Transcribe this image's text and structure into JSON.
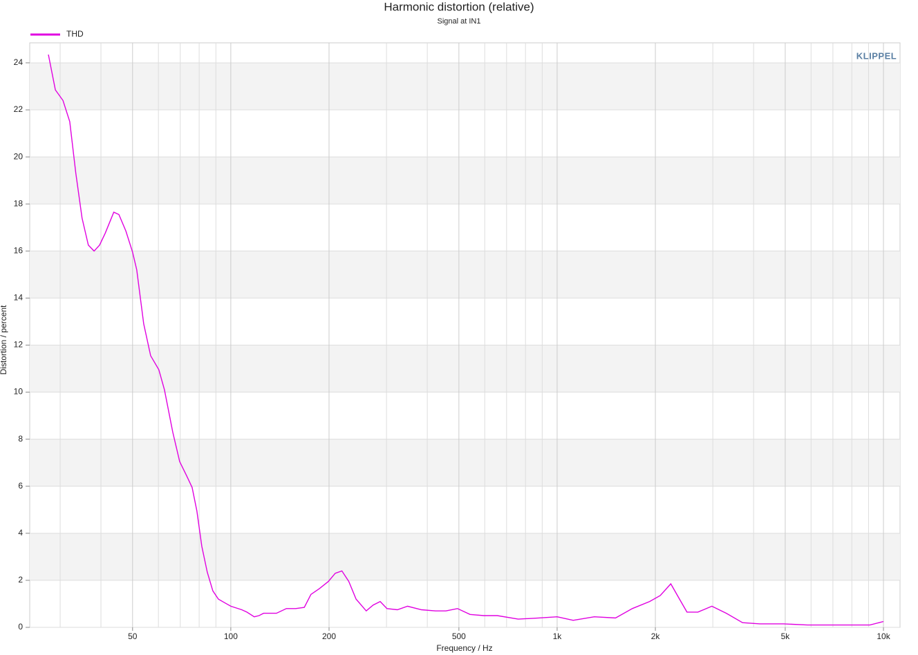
{
  "chart_data": {
    "type": "line",
    "title": "Harmonic distortion (relative)",
    "subtitle": "Signal at IN1",
    "x_label": "Frequency / Hz",
    "y_label": "Distortion / percent",
    "logo": "KLIPPEL",
    "log_x": true,
    "grid": true,
    "legend": "top-left",
    "xlim": [
      24.2,
      11240
    ],
    "ylim": [
      0,
      24.85
    ],
    "xticks": [
      50,
      100,
      200,
      500,
      {
        "value": 1000,
        "label": "1k"
      },
      {
        "value": 2000,
        "label": "2k"
      },
      {
        "value": 5000,
        "label": "5k"
      },
      {
        "value": 10000,
        "label": "10k"
      }
    ],
    "xminorticks": [
      30,
      40,
      60,
      70,
      80,
      90,
      300,
      400,
      600,
      700,
      800,
      900,
      3000,
      4000,
      6000,
      7000,
      8000,
      9000
    ],
    "yticks": [
      0,
      2,
      4,
      6,
      8,
      10,
      12,
      14,
      16,
      18,
      20,
      22,
      24
    ],
    "x": [
      27.6,
      29.0,
      30.6,
      32.1,
      33.5,
      35.0,
      36.6,
      38.1,
      39.6,
      41.2,
      43.8,
      45.4,
      47.7,
      50.0,
      51.5,
      54.1,
      56.8,
      60.2,
      62.6,
      66.4,
      69.7,
      73.2,
      76.1,
      78.7,
      81.5,
      84.7,
      88.1,
      91.6,
      95.7,
      100,
      108,
      112,
      118,
      122,
      126,
      138,
      148,
      158,
      168,
      176,
      187,
      199,
      209,
      219,
      230,
      242,
      260,
      273,
      287,
      301,
      324,
      348,
      384,
      424,
      456,
      495,
      541,
      596,
      656,
      760,
      878,
      1000,
      1120,
      1300,
      1510,
      1700,
      1920,
      2070,
      2230,
      2360,
      2500,
      2700,
      2980,
      3300,
      3700,
      4180,
      4940,
      5850,
      6810,
      8270,
      9090,
      10000
    ],
    "series": [
      {
        "name": "THD",
        "color": "#e000e0",
        "values": [
          24.35,
          22.85,
          22.4,
          21.5,
          19.3,
          17.4,
          16.25,
          16.0,
          16.25,
          16.75,
          17.65,
          17.55,
          16.85,
          15.95,
          15.2,
          12.9,
          11.55,
          10.95,
          10.1,
          8.3,
          7.05,
          6.45,
          5.95,
          4.95,
          3.45,
          2.35,
          1.55,
          1.2,
          1.05,
          0.9,
          0.75,
          0.65,
          0.45,
          0.5,
          0.6,
          0.6,
          0.8,
          0.8,
          0.85,
          1.4,
          1.65,
          1.95,
          2.3,
          2.4,
          1.95,
          1.2,
          0.7,
          0.95,
          1.1,
          0.8,
          0.75,
          0.9,
          0.75,
          0.7,
          0.7,
          0.8,
          0.55,
          0.5,
          0.5,
          0.35,
          0.4,
          0.45,
          0.3,
          0.45,
          0.4,
          0.8,
          1.1,
          1.35,
          1.85,
          1.25,
          0.65,
          0.65,
          0.9,
          0.6,
          0.2,
          0.15,
          0.15,
          0.1,
          0.1,
          0.1,
          0.1,
          0.25
        ]
      }
    ]
  }
}
